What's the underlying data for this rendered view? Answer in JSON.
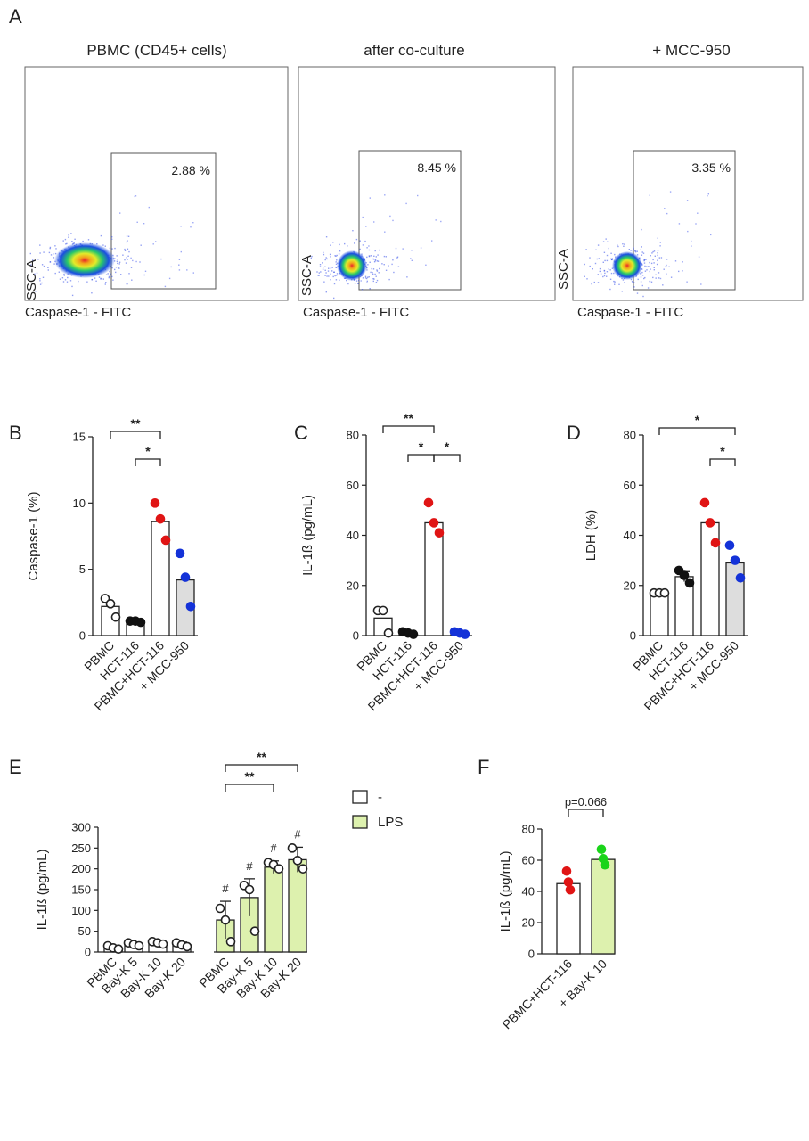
{
  "panel_labels": {
    "A": "A",
    "B": "B",
    "C": "C",
    "D": "D",
    "E": "E",
    "F": "F"
  },
  "chart_data": [
    {
      "panel": "A1",
      "type": "scatter",
      "title": "PBMC (CD45+ cells)",
      "xlabel": "Caspase-1 - FITC",
      "ylabel": "SSC-A",
      "gate_label": "2.88 %"
    },
    {
      "panel": "A2",
      "type": "scatter",
      "title": "after co-culture",
      "xlabel": "Caspase-1 - FITC",
      "ylabel": "SSC-A",
      "gate_label": "8.45 %"
    },
    {
      "panel": "A3",
      "type": "scatter",
      "title": "+ MCC-950",
      "xlabel": "Caspase-1 - FITC",
      "ylabel": "SSC-A",
      "gate_label": "3.35 %"
    },
    {
      "panel": "B",
      "type": "bar",
      "ylabel": "Caspase-1 (%)",
      "ylim": [
        0,
        15
      ],
      "yticks": [
        "0",
        "5",
        "10",
        "15"
      ],
      "categories": [
        "PBMC",
        "HCT-116",
        "PBMC+HCT-116",
        "+ MCC-950"
      ],
      "values": [
        2.2,
        1.1,
        8.6,
        4.2
      ],
      "points": [
        [
          2.8,
          2.4,
          1.4
        ],
        [
          1.1,
          1.1,
          1.0
        ],
        [
          10.0,
          8.8,
          7.2
        ],
        [
          6.2,
          4.4,
          2.2
        ]
      ],
      "bar_fills": [
        "#ffffff",
        "#ffffff",
        "#ffffff",
        "#dddddd"
      ],
      "point_colors": [
        "#ffffff",
        "#111111",
        "#e01515",
        "#1432d8"
      ],
      "brackets": [
        {
          "from": 0,
          "to": 2,
          "label": "**"
        },
        {
          "from": 1,
          "to": 2,
          "label": "*"
        }
      ]
    },
    {
      "panel": "C",
      "type": "bar",
      "ylabel": "IL-1ß (pg/mL)",
      "ylim": [
        0,
        80
      ],
      "yticks": [
        "0",
        "20",
        "40",
        "60",
        "80"
      ],
      "categories": [
        "PBMC",
        "HCT-116",
        "PBMC+HCT-116",
        "+ MCC-950"
      ],
      "values": [
        7,
        1,
        45,
        1
      ],
      "points": [
        [
          10,
          10,
          1
        ],
        [
          1.5,
          1,
          0.5
        ],
        [
          53,
          45,
          41
        ],
        [
          1.5,
          1,
          0.5
        ]
      ],
      "bar_fills": [
        "#ffffff",
        "#ffffff",
        "#ffffff",
        "#ffffff"
      ],
      "point_colors": [
        "#ffffff",
        "#111111",
        "#e01515",
        "#1432d8"
      ],
      "brackets": [
        {
          "from": 0,
          "to": 2,
          "label": "**"
        },
        {
          "from": 1,
          "to": 2,
          "label": "*"
        },
        {
          "from": 2,
          "to": 3,
          "label": "*"
        }
      ]
    },
    {
      "panel": "D",
      "type": "bar",
      "ylabel": "LDH (%)",
      "ylim": [
        0,
        80
      ],
      "yticks": [
        "0",
        "20",
        "40",
        "60",
        "80"
      ],
      "categories": [
        "PBMC",
        "HCT-116",
        "PBMC+HCT-116",
        "+ MCC-950"
      ],
      "values": [
        17,
        23.5,
        45,
        29
      ],
      "points": [
        [
          17,
          17,
          17
        ],
        [
          26,
          24,
          21
        ],
        [
          53,
          45,
          37
        ],
        [
          36,
          30,
          23
        ]
      ],
      "error_bars": [
        null,
        2,
        null,
        null
      ],
      "bar_fills": [
        "#ffffff",
        "#ffffff",
        "#ffffff",
        "#dddddd"
      ],
      "point_colors": [
        "#ffffff",
        "#111111",
        "#e01515",
        "#1432d8"
      ],
      "brackets": [
        {
          "from": 0,
          "to": 3,
          "label": "*"
        },
        {
          "from": 2,
          "to": 3,
          "label": "*"
        }
      ]
    },
    {
      "panel": "E",
      "type": "bar",
      "ylabel": "IL-1ß (pg/mL)",
      "ylim": [
        0,
        300
      ],
      "yticks": [
        "0",
        "50",
        "100",
        "150",
        "200",
        "250",
        "300"
      ],
      "categories": [
        "PBMC",
        "Bay-K 5",
        "Bay-K 10",
        "Bay-K 20",
        "PBMC",
        "Bay-K 5",
        "Bay-K 10",
        "Bay-K 20"
      ],
      "values": [
        10,
        18,
        22,
        18,
        77,
        131,
        204,
        222
      ],
      "errors": [
        5,
        5,
        5,
        6,
        45,
        45,
        15,
        30
      ],
      "points": [
        [
          15,
          10,
          7
        ],
        [
          22,
          18,
          15
        ],
        [
          25,
          22,
          19
        ],
        [
          22,
          17,
          13
        ],
        [
          105,
          77,
          25
        ],
        [
          160,
          150,
          50
        ],
        [
          215,
          210,
          200
        ],
        [
          250,
          220,
          200
        ]
      ],
      "series": [
        {
          "name": "-",
          "color": "#ffffff"
        },
        {
          "name": "LPS",
          "color": "#ddf1ae"
        }
      ],
      "series_index": [
        0,
        0,
        0,
        0,
        1,
        1,
        1,
        1
      ],
      "hash_marks": [
        "",
        "",
        "",
        "",
        "#",
        "#",
        "#",
        "#"
      ],
      "brackets": [
        {
          "from": 4,
          "to": 6,
          "label": "**"
        },
        {
          "from": 4,
          "to": 7,
          "label": "**"
        }
      ],
      "legend": "right"
    },
    {
      "panel": "F",
      "type": "bar",
      "ylabel": "IL-1ß (pg/mL)",
      "ylim": [
        0,
        80
      ],
      "yticks": [
        "0",
        "20",
        "40",
        "60",
        "80"
      ],
      "categories": [
        "PBMC+HCT-116",
        "+ Bay-K 10"
      ],
      "values": [
        45,
        60.5
      ],
      "points": [
        [
          53,
          46,
          41
        ],
        [
          67,
          61,
          57
        ]
      ],
      "bar_fills": [
        "#ffffff",
        "#ddf1ae"
      ],
      "point_colors": [
        "#e01515",
        "#1ad41a"
      ],
      "brackets": [
        {
          "from": 0,
          "to": 1,
          "label": "p=0.066"
        }
      ]
    }
  ]
}
